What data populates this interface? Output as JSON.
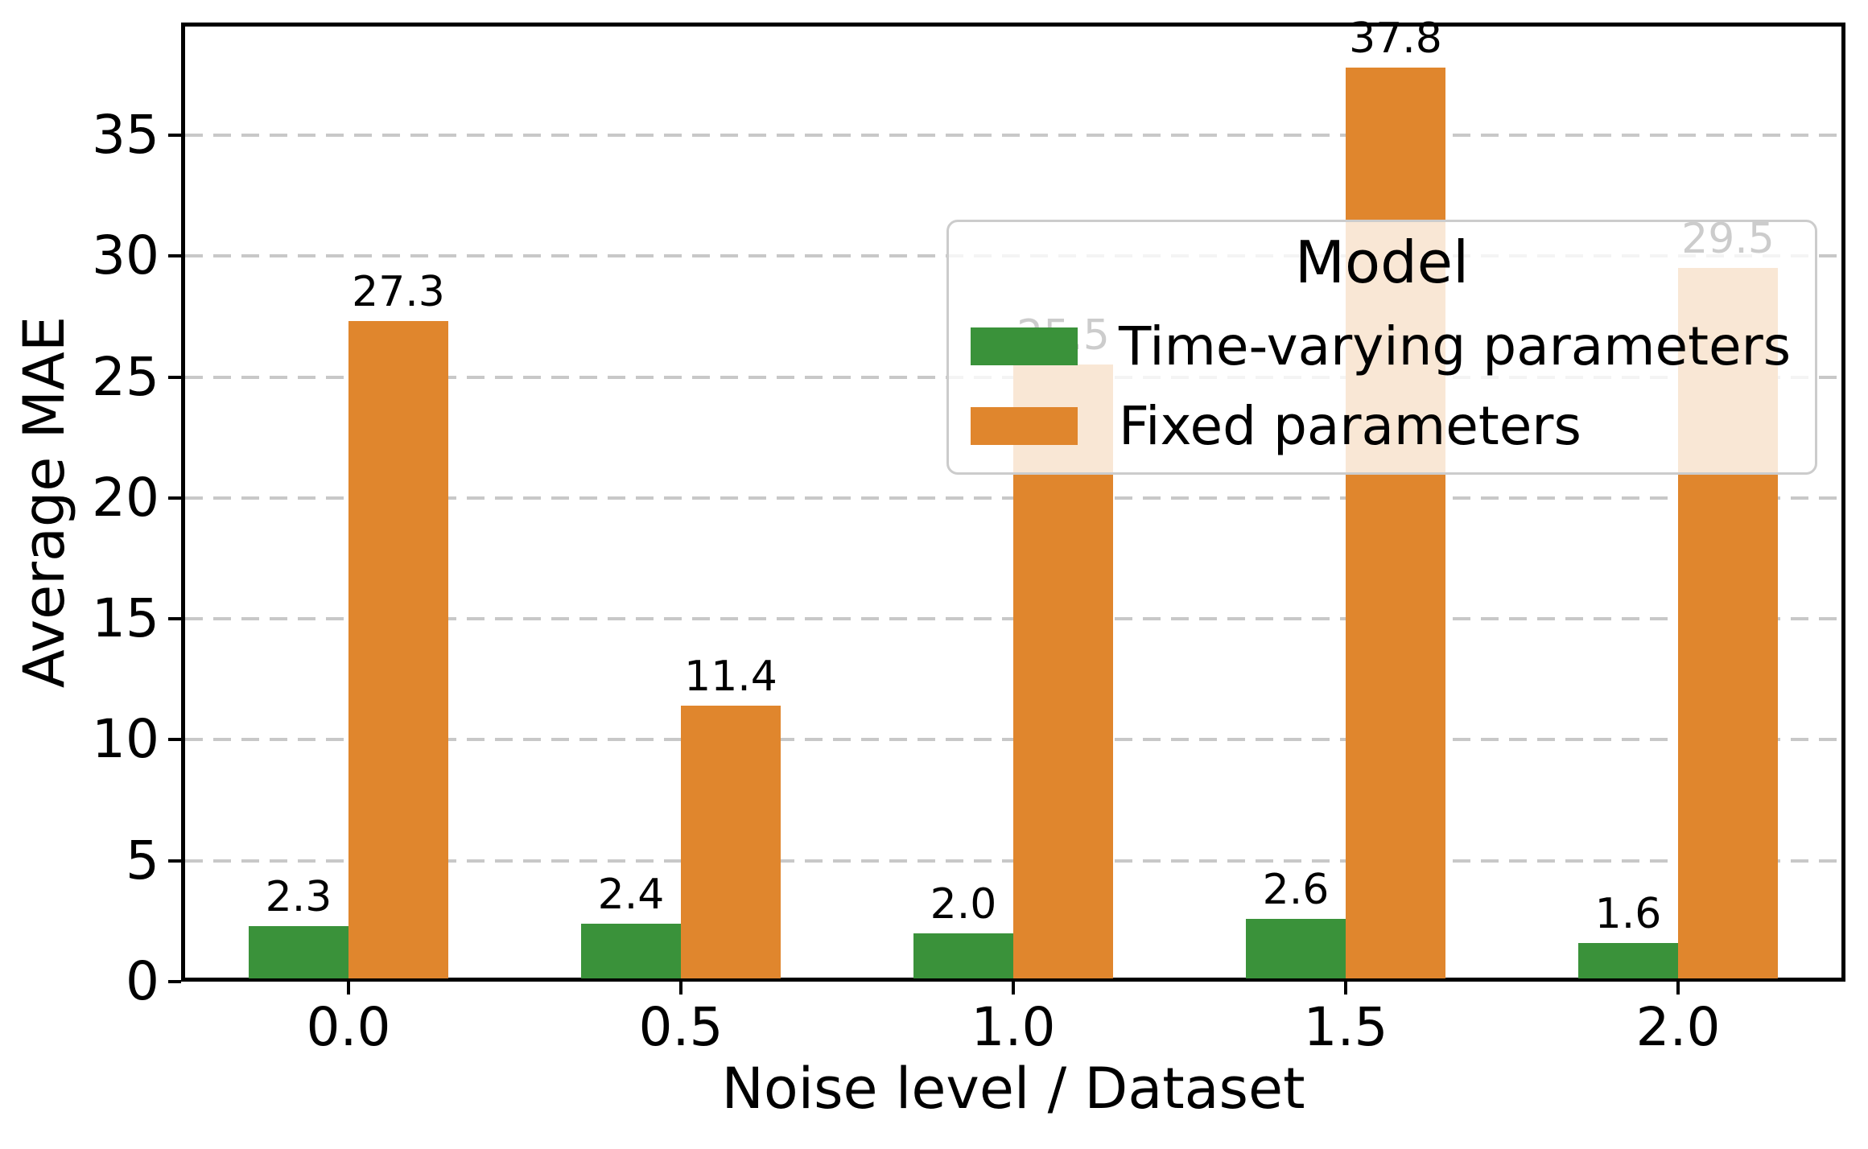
{
  "chart_data": {
    "type": "bar",
    "title": "",
    "xlabel": "Noise level / Dataset",
    "ylabel": "Average MAE",
    "categories": [
      "0.0",
      "0.5",
      "1.0",
      "1.5",
      "2.0"
    ],
    "series": [
      {
        "name": "Time-varying parameters",
        "color": "#3a923a",
        "values": [
          2.3,
          2.4,
          2.0,
          2.6,
          1.6
        ],
        "bar_labels": [
          "2.3",
          "2.4",
          "2.0",
          "2.6",
          "1.6"
        ]
      },
      {
        "name": "Fixed parameters",
        "color": "#e0862d",
        "values": [
          27.3,
          11.4,
          25.5,
          37.8,
          29.5
        ],
        "bar_labels": [
          "27.3",
          "11.4",
          "25.5",
          "37.8",
          "29.5"
        ]
      }
    ],
    "y_ticks": [
      0,
      5,
      10,
      15,
      20,
      25,
      30,
      35
    ],
    "ylim": [
      0,
      39.6
    ],
    "grid": "horizontal-dashed",
    "legend": {
      "title": "Model",
      "entries": [
        "Time-varying parameters",
        "Fixed parameters"
      ],
      "location": "upper right",
      "background_alpha": 0.8
    }
  },
  "colors": {
    "series_green": "#3a923a",
    "series_orange": "#e0862d",
    "gridline": "#c8c8c8",
    "legend_border": "#cccccc",
    "spine": "#000000",
    "text": "#000000"
  }
}
